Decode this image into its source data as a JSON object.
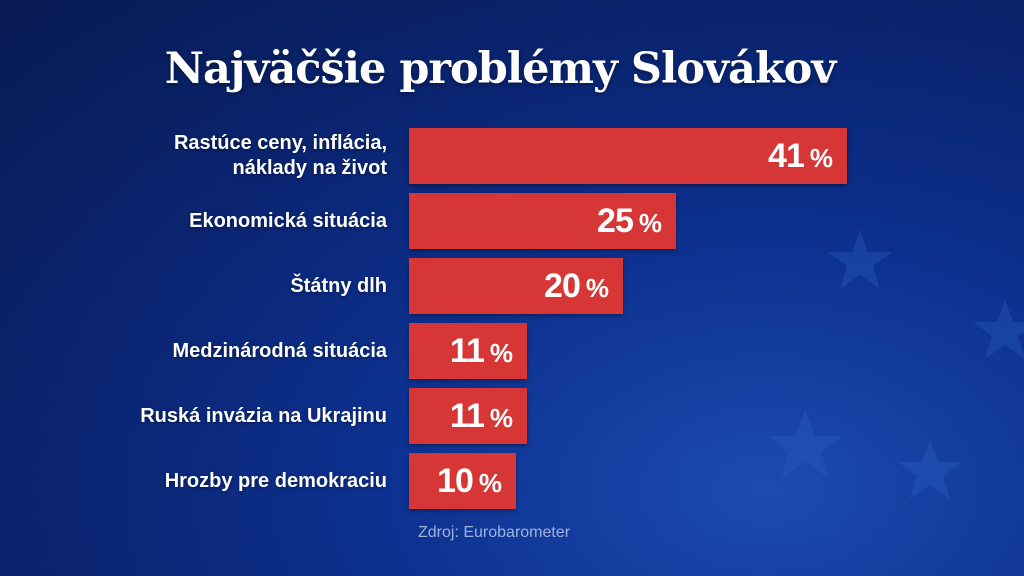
{
  "title": "Najväčšie problémy Slovákov",
  "source": "Zdroj: Eurobarometer",
  "unit": "%",
  "colors": {
    "bar": "#d63636",
    "background": "#0d3190",
    "text": "#ffffff",
    "source_text": "#9fb3dc"
  },
  "chart_data": {
    "type": "bar",
    "orientation": "horizontal",
    "title": "Najväčšie problémy Slovákov",
    "categories": [
      "Rastúce ceny, inflácia, náklady na život",
      "Ekonomická situácia",
      "Štátny dlh",
      "Medzinárodná situácia",
      "Ruská invázia na Ukrajinu",
      "Hrozby pre demokraciu"
    ],
    "values": [
      41,
      25,
      20,
      11,
      11,
      10
    ],
    "value_labels": [
      "41",
      "25",
      "20",
      "11",
      "11",
      "10"
    ],
    "unit": "%",
    "xlim": [
      0,
      41
    ],
    "grid": false,
    "legend": "none"
  }
}
